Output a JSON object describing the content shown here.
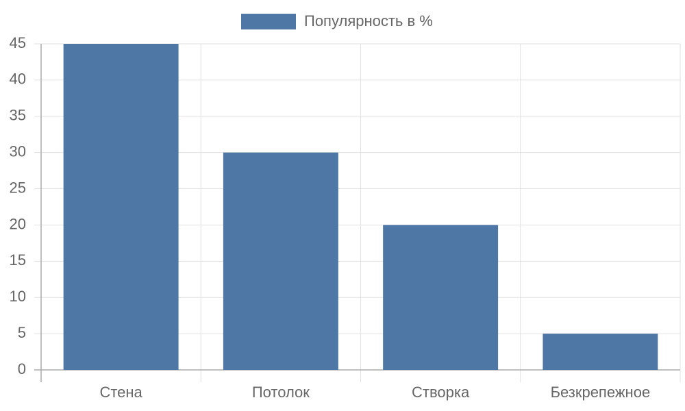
{
  "chart_data": {
    "type": "bar",
    "categories": [
      "Стена",
      "Потолок",
      "Створка",
      "Безкрепежное"
    ],
    "series": [
      {
        "name": "Популярность в %",
        "color": "#4e77a6",
        "values": [
          45,
          30,
          20,
          5
        ]
      }
    ],
    "ylim": [
      0,
      45
    ],
    "yticks": [
      0,
      5,
      10,
      15,
      20,
      25,
      30,
      35,
      40,
      45
    ],
    "grid": true,
    "legend": "top"
  }
}
